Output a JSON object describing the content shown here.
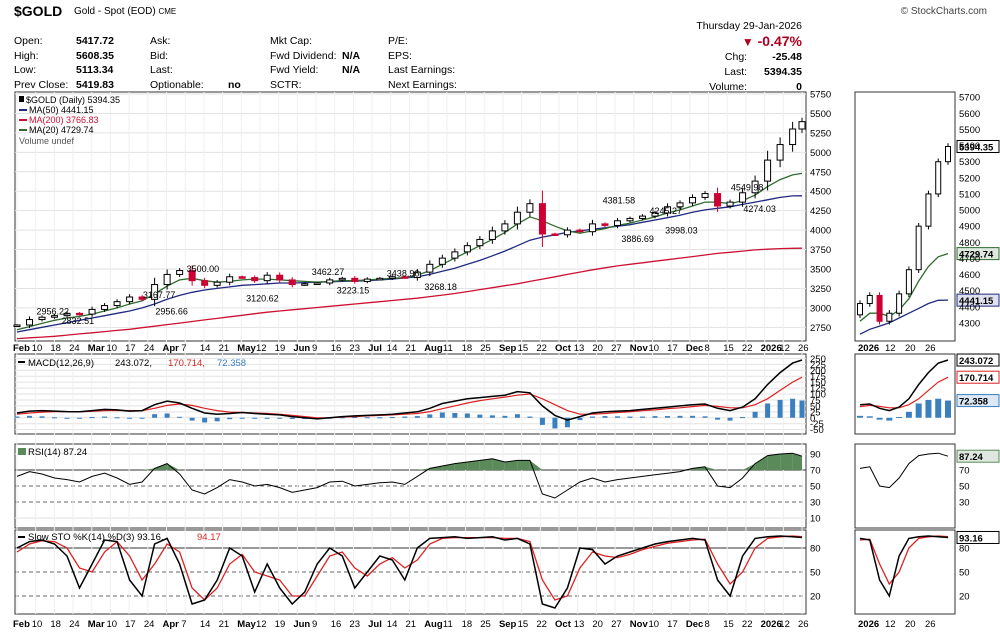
{
  "header": {
    "symbol": "$GOLD",
    "name": "Gold - Spot (EOD)",
    "exchange": "CME",
    "brand": "© StockCharts.com",
    "date_label": "Thursday  29-Jan-2026",
    "pct_change": "-0.47%",
    "chg_label": "Chg:",
    "chg_value": "-25.48",
    "last_label": "Last:",
    "last_value": "5394.35",
    "volume_label": "Volume:",
    "volume_value": "0"
  },
  "quote": {
    "open_label": "Open:",
    "open": "5417.72",
    "high_label": "High:",
    "high": "5608.35",
    "low_label": "Low:",
    "low": "5113.34",
    "prev_label": "Prev Close:",
    "prev": "5419.83",
    "ask": "Ask:",
    "bid": "Bid:",
    "last": "Last:",
    "optionable": "Optionable:",
    "optionable_value": "no",
    "mktcap": "Mkt Cap:",
    "fwd_div": "Fwd Dividend:",
    "fwd_div_value": "N/A",
    "fwd_yield": "Fwd Yield:",
    "fwd_yield_value": "N/A",
    "sctr": "SCTR:",
    "pe": "P/E:",
    "eps": "EPS:",
    "last_earn": "Last Earnings:",
    "next_earn": "Next Earnings:"
  },
  "legend": {
    "price": "$GOLD (Daily) 5394.35",
    "ma50": "MA(50) 4441.15",
    "ma200": "MA(200) 3766.83",
    "ma20": "MA(20) 4729.74",
    "volume": "Volume undef",
    "macd_name": "MACD(12,26,9)",
    "macd_v1": "243.072,",
    "macd_v2": "170.714,",
    "macd_v3": "72.358",
    "rsi": "RSI(14) 87.24",
    "sto_name": "Slow STO %K(14) %D(3) 93.16,",
    "sto_d": "94.17"
  },
  "colors": {
    "price_up": "#000000",
    "price_down": "#cc0033",
    "ma50": "#1f2a80",
    "ma200": "#cc1133",
    "ma20": "#2f6b2f",
    "macd_line": "#000000",
    "signal_line": "#dd2222",
    "histogram": "#3a7fc0",
    "rsi_fill": "#5a8a5a",
    "neg_pct": "#b00020"
  },
  "x_labels": [
    "Feb",
    "10",
    "18",
    "24",
    "Mar",
    "10",
    "17",
    "24",
    "Apr",
    "7",
    "14",
    "21",
    "May",
    "12",
    "19",
    "Jun",
    "9",
    "16",
    "23",
    "Jul",
    "14",
    "21",
    "Aug",
    "11",
    "18",
    "25",
    "Sep",
    "15",
    "22",
    "Oct",
    "13",
    "20",
    "27",
    "Nov",
    "10",
    "17",
    "Dec",
    "8",
    "15",
    "22",
    "2026",
    "12",
    "26"
  ],
  "x_labels_bold": [
    "Feb",
    "Mar",
    "Apr",
    "May",
    "Jun",
    "Jul",
    "Aug",
    "Sep",
    "Oct",
    "Nov",
    "Dec",
    "2026"
  ],
  "chart_data": [
    {
      "type": "line",
      "title": "$GOLD (Daily) 5394.35",
      "ylim": [
        2600,
        5750
      ],
      "y_ticks": [
        2750,
        3000,
        3250,
        3500,
        3750,
        4000,
        4250,
        4500,
        4750,
        5000,
        5250,
        5500,
        5750
      ],
      "x": [
        0,
        4,
        8,
        12,
        16,
        20,
        24,
        28,
        32,
        36,
        40,
        44,
        48,
        52,
        56,
        60,
        64,
        68,
        72,
        76,
        80,
        84,
        88,
        92,
        96,
        100,
        104,
        108,
        112,
        116,
        120,
        124,
        128,
        132,
        136,
        140,
        144,
        148,
        152,
        156,
        160,
        164,
        168,
        172,
        176,
        180,
        184,
        188,
        192,
        196,
        200,
        204,
        208,
        212,
        216,
        220,
        224,
        228,
        232,
        236,
        240,
        244,
        248,
        251
      ],
      "series": [
        {
          "name": "$GOLD",
          "values": [
            2780,
            2850,
            2880,
            2900,
            2930,
            2920,
            2980,
            3030,
            3080,
            3140,
            3110,
            3300,
            3430,
            3480,
            3350,
            3290,
            3330,
            3400,
            3390,
            3350,
            3420,
            3360,
            3300,
            3310,
            3320,
            3360,
            3380,
            3340,
            3370,
            3380,
            3400,
            3390,
            3460,
            3560,
            3640,
            3720,
            3800,
            3880,
            3990,
            4080,
            4230,
            4340,
            3950,
            3940,
            4000,
            3980,
            4080,
            4060,
            4120,
            4150,
            4180,
            4220,
            4300,
            4350,
            4420,
            4470,
            4310,
            4360,
            4480,
            4630,
            4900,
            5100,
            5300,
            5394.35
          ]
        },
        {
          "name": "MA(50)",
          "values": [
            2690,
            2720,
            2750,
            2780,
            2810,
            2840,
            2870,
            2900,
            2930,
            2960,
            3000,
            3050,
            3110,
            3160,
            3200,
            3230,
            3250,
            3270,
            3290,
            3300,
            3310,
            3320,
            3320,
            3325,
            3330,
            3335,
            3340,
            3345,
            3350,
            3360,
            3370,
            3385,
            3400,
            3430,
            3470,
            3510,
            3560,
            3610,
            3670,
            3730,
            3800,
            3870,
            3910,
            3940,
            3970,
            3990,
            4010,
            4030,
            4050,
            4070,
            4100,
            4130,
            4160,
            4190,
            4230,
            4260,
            4280,
            4300,
            4330,
            4360,
            4390,
            4420,
            4440,
            4441.15
          ]
        },
        {
          "name": "MA(200)",
          "values": [
            2605,
            2615,
            2625,
            2635,
            2650,
            2665,
            2680,
            2695,
            2710,
            2725,
            2745,
            2765,
            2785,
            2805,
            2825,
            2845,
            2865,
            2885,
            2905,
            2925,
            2945,
            2960,
            2975,
            2990,
            3005,
            3020,
            3035,
            3050,
            3065,
            3080,
            3095,
            3110,
            3125,
            3145,
            3165,
            3185,
            3210,
            3235,
            3260,
            3285,
            3310,
            3340,
            3370,
            3400,
            3430,
            3460,
            3490,
            3515,
            3540,
            3560,
            3580,
            3600,
            3620,
            3640,
            3660,
            3680,
            3700,
            3715,
            3730,
            3745,
            3755,
            3762,
            3766,
            3766.83
          ]
        },
        {
          "name": "MA(20)",
          "values": [
            2720,
            2760,
            2800,
            2840,
            2870,
            2890,
            2920,
            2960,
            3000,
            3050,
            3090,
            3180,
            3280,
            3360,
            3380,
            3350,
            3330,
            3340,
            3360,
            3370,
            3370,
            3360,
            3350,
            3340,
            3330,
            3340,
            3350,
            3350,
            3360,
            3370,
            3380,
            3390,
            3420,
            3480,
            3560,
            3640,
            3720,
            3800,
            3880,
            3970,
            4080,
            4170,
            4120,
            4050,
            3990,
            3960,
            3990,
            4020,
            4060,
            4090,
            4130,
            4170,
            4220,
            4260,
            4310,
            4360,
            4360,
            4340,
            4380,
            4450,
            4560,
            4650,
            4710,
            4729.74
          ]
        }
      ],
      "annotations": [
        {
          "label": "2956.22",
          "x": 12,
          "y": 2956.22
        },
        {
          "label": "2832.51",
          "x": 20,
          "y": 2832.51
        },
        {
          "label": "3167.77",
          "x": 46,
          "y": 3167.77
        },
        {
          "label": "2956.66",
          "x": 50,
          "y": 2956.66
        },
        {
          "label": "3500.00",
          "x": 60,
          "y": 3500
        },
        {
          "label": "3120.62",
          "x": 79,
          "y": 3120.62
        },
        {
          "label": "3462.27",
          "x": 100,
          "y": 3462.27
        },
        {
          "label": "3223.15",
          "x": 108,
          "y": 3223.15
        },
        {
          "label": "3438.96",
          "x": 124,
          "y": 3438.96
        },
        {
          "label": "3268.18",
          "x": 136,
          "y": 3268.18
        },
        {
          "label": "4381.58",
          "x": 193,
          "y": 4381.58
        },
        {
          "label": "3886.69",
          "x": 199,
          "y": 3886.69
        },
        {
          "label": "4245.27",
          "x": 208,
          "y": 4245.27
        },
        {
          "label": "3998.03",
          "x": 213,
          "y": 3998.03
        },
        {
          "label": "4549.98",
          "x": 234,
          "y": 4549.98
        },
        {
          "label": "4274.03",
          "x": 238,
          "y": 4274.03
        }
      ]
    },
    {
      "type": "line",
      "title": "MACD(12,26,9) 243.072, 170.714, 72.358",
      "ylim": [
        -60,
        260
      ],
      "y_ticks": [
        -50,
        -25,
        0,
        25,
        50,
        75,
        100,
        125,
        150,
        175,
        200,
        225,
        250
      ],
      "series": [
        {
          "name": "MACD",
          "values": [
            20,
            28,
            30,
            28,
            26,
            25,
            30,
            35,
            33,
            28,
            30,
            55,
            70,
            62,
            40,
            20,
            15,
            18,
            22,
            18,
            15,
            12,
            5,
            0,
            -5,
            0,
            5,
            8,
            10,
            12,
            15,
            20,
            25,
            40,
            60,
            70,
            80,
            85,
            90,
            95,
            110,
            105,
            50,
            10,
            -10,
            5,
            20,
            25,
            28,
            30,
            35,
            40,
            45,
            50,
            55,
            58,
            40,
            30,
            45,
            80,
            140,
            190,
            230,
            243.072
          ]
        },
        {
          "name": "Signal",
          "values": [
            15,
            20,
            24,
            26,
            26,
            25,
            27,
            30,
            31,
            30,
            30,
            40,
            52,
            58,
            52,
            40,
            30,
            24,
            22,
            20,
            18,
            15,
            10,
            5,
            0,
            0,
            3,
            5,
            8,
            10,
            12,
            15,
            18,
            26,
            38,
            50,
            62,
            72,
            80,
            87,
            95,
            100,
            80,
            55,
            30,
            15,
            15,
            18,
            22,
            25,
            30,
            33,
            38,
            42,
            47,
            52,
            48,
            42,
            42,
            55,
            80,
            115,
            150,
            170.714
          ]
        },
        {
          "name": "Histogram",
          "values": [
            5,
            8,
            6,
            2,
            0,
            0,
            3,
            5,
            2,
            -2,
            0,
            15,
            18,
            4,
            -12,
            -20,
            -15,
            -6,
            0,
            -2,
            -3,
            -3,
            -5,
            -5,
            -5,
            0,
            2,
            3,
            2,
            2,
            3,
            5,
            7,
            14,
            22,
            20,
            18,
            13,
            10,
            8,
            15,
            5,
            -30,
            -45,
            -40,
            -10,
            5,
            7,
            6,
            5,
            5,
            7,
            7,
            8,
            8,
            6,
            -8,
            -12,
            3,
            25,
            60,
            75,
            80,
            72.358
          ]
        }
      ]
    },
    {
      "type": "line",
      "title": "RSI(14) 87.24",
      "ylim": [
        0,
        100
      ],
      "y_ticks": [
        10,
        30,
        50,
        70,
        90
      ],
      "series": [
        {
          "name": "RSI",
          "values": [
            62,
            68,
            65,
            60,
            58,
            55,
            62,
            66,
            60,
            52,
            55,
            72,
            78,
            65,
            45,
            40,
            48,
            58,
            55,
            50,
            52,
            48,
            42,
            45,
            48,
            55,
            56,
            50,
            52,
            54,
            55,
            52,
            62,
            72,
            75,
            78,
            80,
            82,
            84,
            80,
            82,
            82,
            40,
            35,
            45,
            55,
            60,
            55,
            58,
            60,
            62,
            64,
            66,
            68,
            72,
            74,
            50,
            48,
            60,
            78,
            88,
            90,
            91,
            87.24
          ]
        }
      ]
    },
    {
      "type": "line",
      "title": "Slow STO %K(14) %D(3) 93.16, 94.17",
      "ylim": [
        0,
        100
      ],
      "y_ticks": [
        20,
        50,
        80
      ],
      "series": [
        {
          "name": "%K",
          "values": [
            80,
            88,
            90,
            85,
            70,
            30,
            60,
            90,
            88,
            40,
            20,
            85,
            92,
            60,
            10,
            15,
            40,
            80,
            70,
            25,
            60,
            30,
            10,
            25,
            60,
            80,
            70,
            30,
            50,
            70,
            65,
            40,
            80,
            92,
            93,
            94,
            92,
            93,
            94,
            90,
            92,
            85,
            10,
            5,
            30,
            80,
            78,
            60,
            70,
            75,
            80,
            85,
            88,
            90,
            92,
            90,
            40,
            20,
            70,
            92,
            94,
            95,
            94,
            93.16
          ]
        },
        {
          "name": "%D",
          "values": [
            75,
            85,
            89,
            88,
            80,
            55,
            50,
            75,
            88,
            70,
            40,
            60,
            85,
            75,
            30,
            15,
            30,
            60,
            72,
            50,
            45,
            40,
            20,
            20,
            45,
            70,
            75,
            55,
            45,
            60,
            68,
            55,
            65,
            85,
            92,
            93,
            93,
            93,
            93,
            92,
            92,
            88,
            40,
            15,
            20,
            55,
            75,
            70,
            68,
            72,
            78,
            82,
            86,
            88,
            90,
            91,
            60,
            35,
            50,
            80,
            92,
            94,
            95,
            94.17
          ]
        }
      ]
    }
  ]
}
